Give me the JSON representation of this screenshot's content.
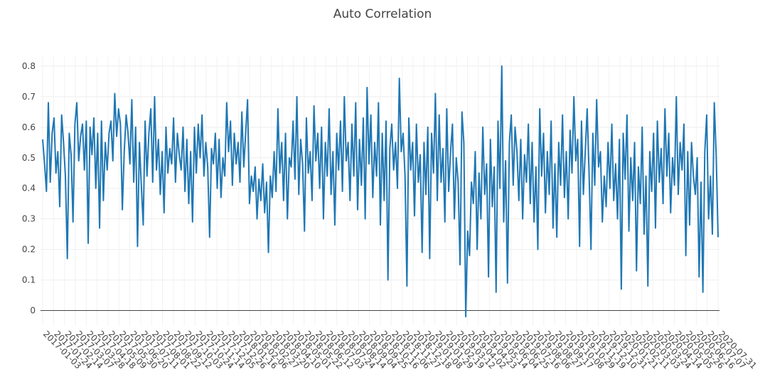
{
  "chart_data": {
    "type": "line",
    "title": "Auto Correlation",
    "xlabel": "",
    "ylabel": "",
    "x_start": "2017-01-03",
    "x_end": "2020-07-31",
    "ylim": [
      -0.05,
      0.83
    ],
    "y_ticks": [
      "0",
      "0.1",
      "0.2",
      "0.3",
      "0.4",
      "0.5",
      "0.6",
      "0.7",
      "0.8"
    ],
    "x_ticks": [
      "2017-01-03",
      "2017-01-24",
      "2017-02-14",
      "2017-03-07",
      "2017-03-28",
      "2017-04-18",
      "2017-05-09",
      "2017-05-30",
      "2017-06-20",
      "2017-07-11",
      "2017-08-01",
      "2017-08-22",
      "2017-09-12",
      "2017-10-03",
      "2017-10-24",
      "2017-11-14",
      "2017-12-05",
      "2017-12-26",
      "2018-01-16",
      "2018-02-06",
      "2018-02-27",
      "2018-03-20",
      "2018-04-10",
      "2018-05-01",
      "2018-05-22",
      "2018-06-12",
      "2018-07-03",
      "2018-07-24",
      "2018-08-14",
      "2018-09-04",
      "2018-09-25",
      "2018-10-16",
      "2018-11-06",
      "2018-11-27",
      "2018-12-18",
      "2019-01-08",
      "2019-01-29",
      "2019-02-19",
      "2019-03-12",
      "2019-04-02",
      "2019-04-23",
      "2019-05-14",
      "2019-06-04",
      "2019-06-25",
      "2019-07-16",
      "2019-08-06",
      "2019-08-27",
      "2019-09-17",
      "2019-10-08",
      "2019-10-29",
      "2019-11-19",
      "2019-12-10",
      "2019-12-31",
      "2020-01-21",
      "2020-02-11",
      "2020-03-03",
      "2020-03-24",
      "2020-04-14",
      "2020-05-05",
      "2020-05-26",
      "2020-06-16",
      "2020-07-07",
      "2020-07-31"
    ],
    "grid": true,
    "zero_line": true,
    "series": [
      {
        "color": "#1f77b4",
        "values": [
          0.56,
          0.48,
          0.39,
          0.68,
          0.42,
          0.58,
          0.63,
          0.45,
          0.52,
          0.34,
          0.64,
          0.55,
          0.44,
          0.17,
          0.58,
          0.51,
          0.29,
          0.61,
          0.68,
          0.49,
          0.57,
          0.61,
          0.46,
          0.62,
          0.22,
          0.6,
          0.51,
          0.63,
          0.4,
          0.58,
          0.27,
          0.62,
          0.36,
          0.55,
          0.46,
          0.58,
          0.62,
          0.49,
          0.71,
          0.57,
          0.66,
          0.61,
          0.33,
          0.52,
          0.64,
          0.58,
          0.48,
          0.69,
          0.42,
          0.6,
          0.21,
          0.55,
          0.41,
          0.28,
          0.62,
          0.44,
          0.58,
          0.66,
          0.42,
          0.7,
          0.46,
          0.56,
          0.38,
          0.52,
          0.32,
          0.6,
          0.45,
          0.53,
          0.48,
          0.63,
          0.42,
          0.58,
          0.51,
          0.46,
          0.6,
          0.39,
          0.56,
          0.35,
          0.52,
          0.29,
          0.6,
          0.45,
          0.61,
          0.5,
          0.64,
          0.44,
          0.55,
          0.47,
          0.24,
          0.53,
          0.48,
          0.58,
          0.4,
          0.56,
          0.37,
          0.5,
          0.44,
          0.68,
          0.52,
          0.62,
          0.41,
          0.58,
          0.48,
          0.55,
          0.42,
          0.65,
          0.47,
          0.58,
          0.69,
          0.35,
          0.44,
          0.39,
          0.47,
          0.3,
          0.43,
          0.36,
          0.48,
          0.32,
          0.42,
          0.19,
          0.44,
          0.37,
          0.52,
          0.39,
          0.66,
          0.45,
          0.55,
          0.36,
          0.58,
          0.3,
          0.5,
          0.47,
          0.62,
          0.43,
          0.7,
          0.38,
          0.56,
          0.48,
          0.26,
          0.63,
          0.45,
          0.52,
          0.36,
          0.67,
          0.49,
          0.58,
          0.4,
          0.6,
          0.3,
          0.55,
          0.44,
          0.66,
          0.38,
          0.52,
          0.28,
          0.58,
          0.46,
          0.62,
          0.39,
          0.7,
          0.49,
          0.55,
          0.36,
          0.61,
          0.44,
          0.68,
          0.33,
          0.56,
          0.41,
          0.63,
          0.3,
          0.73,
          0.48,
          0.64,
          0.37,
          0.55,
          0.44,
          0.68,
          0.28,
          0.58,
          0.36,
          0.62,
          0.1,
          0.53,
          0.61,
          0.46,
          0.55,
          0.4,
          0.76,
          0.52,
          0.58,
          0.44,
          0.08,
          0.63,
          0.46,
          0.55,
          0.31,
          0.61,
          0.42,
          0.51,
          0.19,
          0.55,
          0.38,
          0.6,
          0.17,
          0.58,
          0.45,
          0.71,
          0.36,
          0.64,
          0.42,
          0.53,
          0.29,
          0.66,
          0.39,
          0.52,
          0.61,
          0.3,
          0.5,
          0.42,
          0.15,
          0.65,
          0.55,
          -0.02,
          0.26,
          0.18,
          0.42,
          0.35,
          0.52,
          0.2,
          0.45,
          0.3,
          0.6,
          0.38,
          0.48,
          0.11,
          0.56,
          0.34,
          0.47,
          0.06,
          0.62,
          0.4,
          0.8,
          0.29,
          0.49,
          0.09,
          0.55,
          0.64,
          0.41,
          0.6,
          0.52,
          0.36,
          0.56,
          0.3,
          0.51,
          0.42,
          0.61,
          0.35,
          0.55,
          0.29,
          0.47,
          0.2,
          0.66,
          0.44,
          0.58,
          0.32,
          0.52,
          0.38,
          0.62,
          0.27,
          0.48,
          0.24,
          0.55,
          0.41,
          0.64,
          0.37,
          0.52,
          0.3,
          0.59,
          0.45,
          0.7,
          0.49,
          0.56,
          0.21,
          0.62,
          0.38,
          0.52,
          0.66,
          0.45,
          0.2,
          0.58,
          0.41,
          0.69,
          0.47,
          0.52,
          0.29,
          0.44,
          0.34,
          0.55,
          0.4,
          0.61,
          0.36,
          0.48,
          0.3,
          0.56,
          0.07,
          0.58,
          0.43,
          0.64,
          0.26,
          0.5,
          0.36,
          0.55,
          0.13,
          0.47,
          0.35,
          0.6,
          0.25,
          0.44,
          0.08,
          0.52,
          0.39,
          0.58,
          0.27,
          0.62,
          0.42,
          0.53,
          0.35,
          0.66,
          0.44,
          0.58,
          0.32,
          0.5,
          0.41,
          0.7,
          0.38,
          0.55,
          0.46,
          0.61,
          0.18,
          0.52,
          0.28,
          0.55,
          0.44,
          0.38,
          0.5,
          0.11,
          0.42,
          0.06,
          0.52,
          0.64,
          0.3,
          0.44,
          0.25,
          0.68,
          0.51,
          0.24
        ]
      }
    ]
  }
}
